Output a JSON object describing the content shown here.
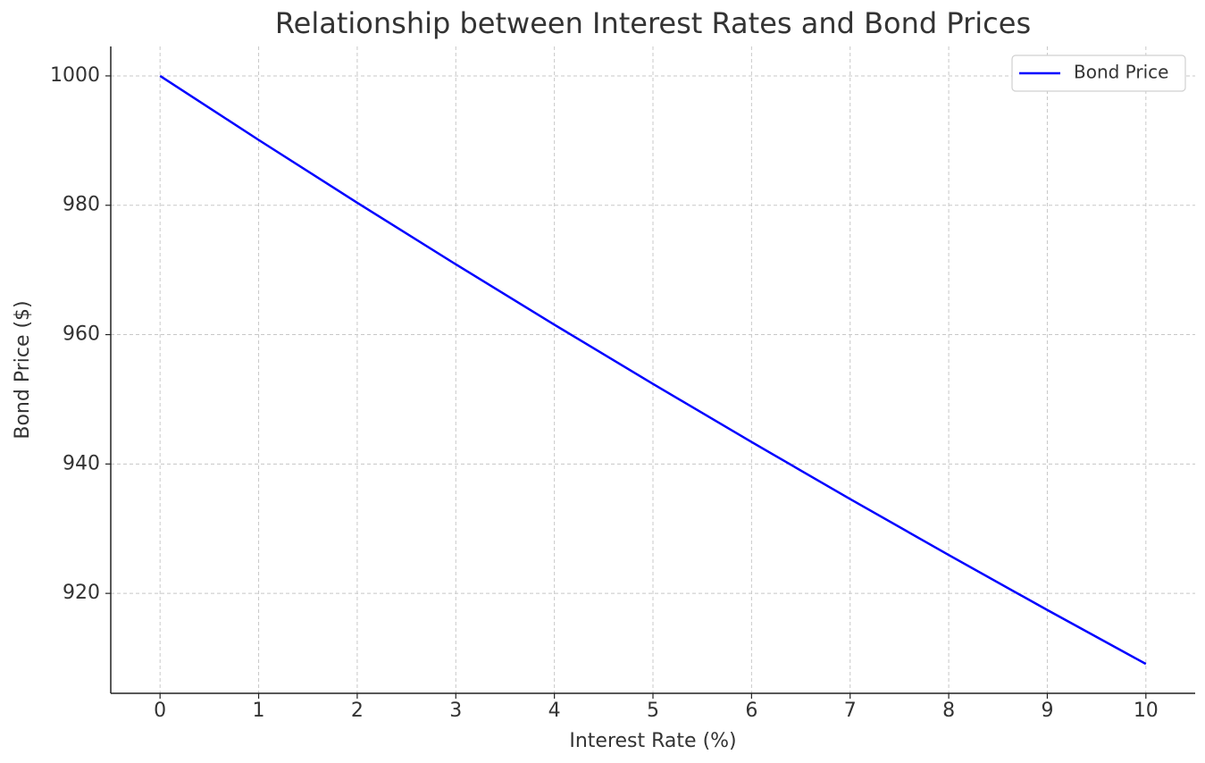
{
  "chart_data": {
    "type": "line",
    "title": "Relationship between Interest Rates and Bond Prices",
    "x_label": "Interest Rate (%)",
    "y_label": "Bond Price ($)",
    "x": [
      0,
      1,
      2,
      3,
      4,
      5,
      6,
      7,
      8,
      9,
      10
    ],
    "series": [
      {
        "name": "Bond Price",
        "color": "#0000ff",
        "values": [
          1000,
          990.1,
          980.39,
          970.87,
          961.54,
          952.38,
          943.4,
          934.58,
          925.93,
          917.43,
          909.09
        ]
      }
    ],
    "xlim": [
      -0.5,
      10.5
    ],
    "xticks": [
      0,
      1,
      2,
      3,
      4,
      5,
      6,
      7,
      8,
      9,
      10
    ],
    "ylim": [
      904.55,
      1004.55
    ],
    "yticks": [
      920,
      940,
      960,
      980,
      1000
    ],
    "grid": true,
    "legend": "upper right"
  }
}
